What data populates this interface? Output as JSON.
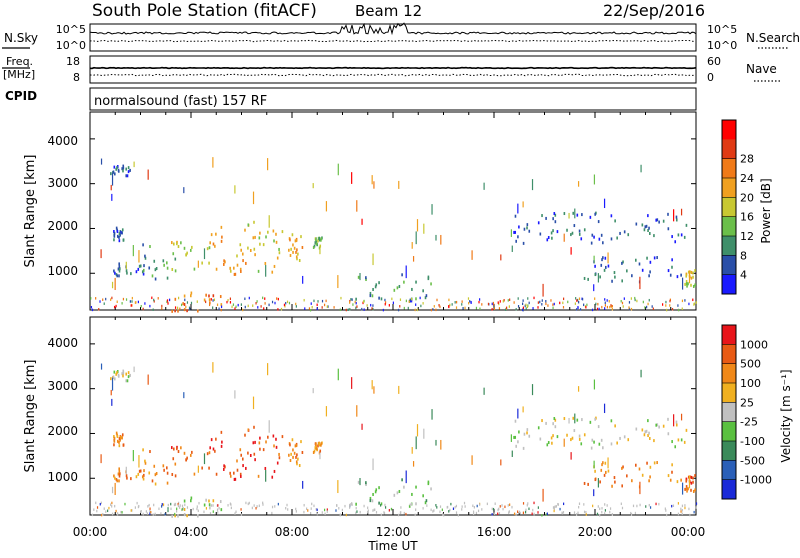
{
  "header": {
    "title": "South Pole Station (fitACF)",
    "beam": "Beam 12",
    "date": "22/Sep/2016"
  },
  "strips": {
    "nsky_label": "N.Sky",
    "nsky_ticks": [
      "10^5",
      "10^0"
    ],
    "nsearch_label": "N.Search",
    "nsearch_ticks": [
      "10^5",
      "10^0"
    ],
    "freq_label_1": "Freq.",
    "freq_label_2": "[MHz]",
    "freq_ticks": [
      "18",
      "8"
    ],
    "nave_label": "Nave",
    "nave_ticks": [
      "60",
      "0"
    ],
    "cpid_label": "CPID",
    "cpid_value": "normalsound (fast) 157 RF"
  },
  "chart_data": [
    {
      "type": "heatmap",
      "name": "power",
      "ylabel": "Slant Range [km]",
      "yticks": [
        "1000",
        "2000",
        "3000",
        "4000"
      ],
      "ylim": [
        180,
        4600
      ],
      "xlim": [
        0,
        24
      ],
      "colorbar_label": "Power [dB]",
      "colorbar_ticks": [
        "4",
        "8",
        "12",
        "16",
        "20",
        "24",
        "28"
      ],
      "colorbar_colors": [
        "#1a1aff",
        "#2a4fa8",
        "#3f8f6a",
        "#6bbf4a",
        "#c8c832",
        "#f0a020",
        "#f07a18",
        "#e03a14",
        "#ff0000"
      ],
      "regions": [
        {
          "t0": 0.7,
          "t1": 1.6,
          "r0": 3200,
          "r1": 3450,
          "level": 1
        },
        {
          "t0": 0.9,
          "t1": 1.3,
          "r0": 1750,
          "r1": 2050,
          "level": 1
        },
        {
          "t0": 0.9,
          "t1": 2.2,
          "r0": 950,
          "r1": 1300,
          "level": 1
        },
        {
          "t0": 2.0,
          "t1": 3.4,
          "r0": 900,
          "r1": 1700,
          "level": 2
        },
        {
          "t0": 3.2,
          "t1": 4.8,
          "r0": 1100,
          "r1": 1900,
          "level": 4
        },
        {
          "t0": 4.8,
          "t1": 6.2,
          "r0": 1000,
          "r1": 2100,
          "level": 5
        },
        {
          "t0": 6.2,
          "t1": 7.6,
          "r0": 1000,
          "r1": 2200,
          "level": 4
        },
        {
          "t0": 7.8,
          "t1": 8.4,
          "r0": 1200,
          "r1": 1900,
          "level": 5
        },
        {
          "t0": 8.8,
          "t1": 9.2,
          "r0": 1550,
          "r1": 1850,
          "level": 3
        },
        {
          "t0": 3.0,
          "t1": 5.3,
          "r0": 180,
          "r1": 600,
          "level": 6
        },
        {
          "t0": 10.5,
          "t1": 13.5,
          "r0": 400,
          "r1": 1000,
          "level": 2
        },
        {
          "t0": 16.6,
          "t1": 23.6,
          "r0": 1700,
          "r1": 2400,
          "level": 1
        },
        {
          "t0": 19.5,
          "t1": 23.5,
          "r0": 800,
          "r1": 1400,
          "level": 1
        },
        {
          "t0": 23.5,
          "t1": 24.0,
          "r0": 700,
          "r1": 1100,
          "level": 4
        }
      ]
    },
    {
      "type": "heatmap",
      "name": "velocity",
      "ylabel": "Slant Range [km]",
      "yticks": [
        "1000",
        "2000",
        "3000",
        "4000"
      ],
      "ylim": [
        180,
        4600
      ],
      "xlim": [
        0,
        24
      ],
      "colorbar_label": "Velocity [m s⁻¹]",
      "colorbar_ticks": [
        "1000",
        "500",
        "100",
        "25",
        "-25",
        "-100",
        "-500",
        "-1000"
      ],
      "colorbar_colors": [
        "#1a2ad8",
        "#2a5fb8",
        "#3a8a5a",
        "#5ac040",
        "#c0c0c0",
        "#f0b020",
        "#f08818",
        "#e85a14",
        "#e8141a"
      ],
      "regions": [
        {
          "t0": 0.7,
          "t1": 1.6,
          "r0": 3200,
          "r1": 3450,
          "level": 4
        },
        {
          "t0": 0.9,
          "t1": 1.3,
          "r0": 1750,
          "r1": 2050,
          "level": 6
        },
        {
          "t0": 0.9,
          "t1": 2.2,
          "r0": 950,
          "r1": 1300,
          "level": 6
        },
        {
          "t0": 2.0,
          "t1": 3.4,
          "r0": 900,
          "r1": 1700,
          "level": 6
        },
        {
          "t0": 3.2,
          "t1": 4.8,
          "r0": 1100,
          "r1": 1900,
          "level": 7
        },
        {
          "t0": 4.8,
          "t1": 6.2,
          "r0": 1000,
          "r1": 2100,
          "level": 7
        },
        {
          "t0": 6.2,
          "t1": 7.6,
          "r0": 1000,
          "r1": 2200,
          "level": 7
        },
        {
          "t0": 7.8,
          "t1": 8.4,
          "r0": 1200,
          "r1": 1900,
          "level": 6
        },
        {
          "t0": 8.8,
          "t1": 9.2,
          "r0": 1550,
          "r1": 1850,
          "level": 6
        },
        {
          "t0": 3.0,
          "t1": 5.3,
          "r0": 180,
          "r1": 600,
          "level": 4
        },
        {
          "t0": 10.5,
          "t1": 13.5,
          "r0": 400,
          "r1": 1000,
          "level": 3
        },
        {
          "t0": 16.6,
          "t1": 23.6,
          "r0": 1700,
          "r1": 2400,
          "level": 4
        },
        {
          "t0": 19.5,
          "t1": 23.5,
          "r0": 800,
          "r1": 1400,
          "level": 6
        },
        {
          "t0": 23.5,
          "t1": 24.0,
          "r0": 700,
          "r1": 1100,
          "level": 7
        }
      ]
    }
  ],
  "x_axis": {
    "ticks": [
      "00:00",
      "04:00",
      "08:00",
      "12:00",
      "16:00",
      "20:00",
      "00:00"
    ],
    "label": "Time UT"
  }
}
